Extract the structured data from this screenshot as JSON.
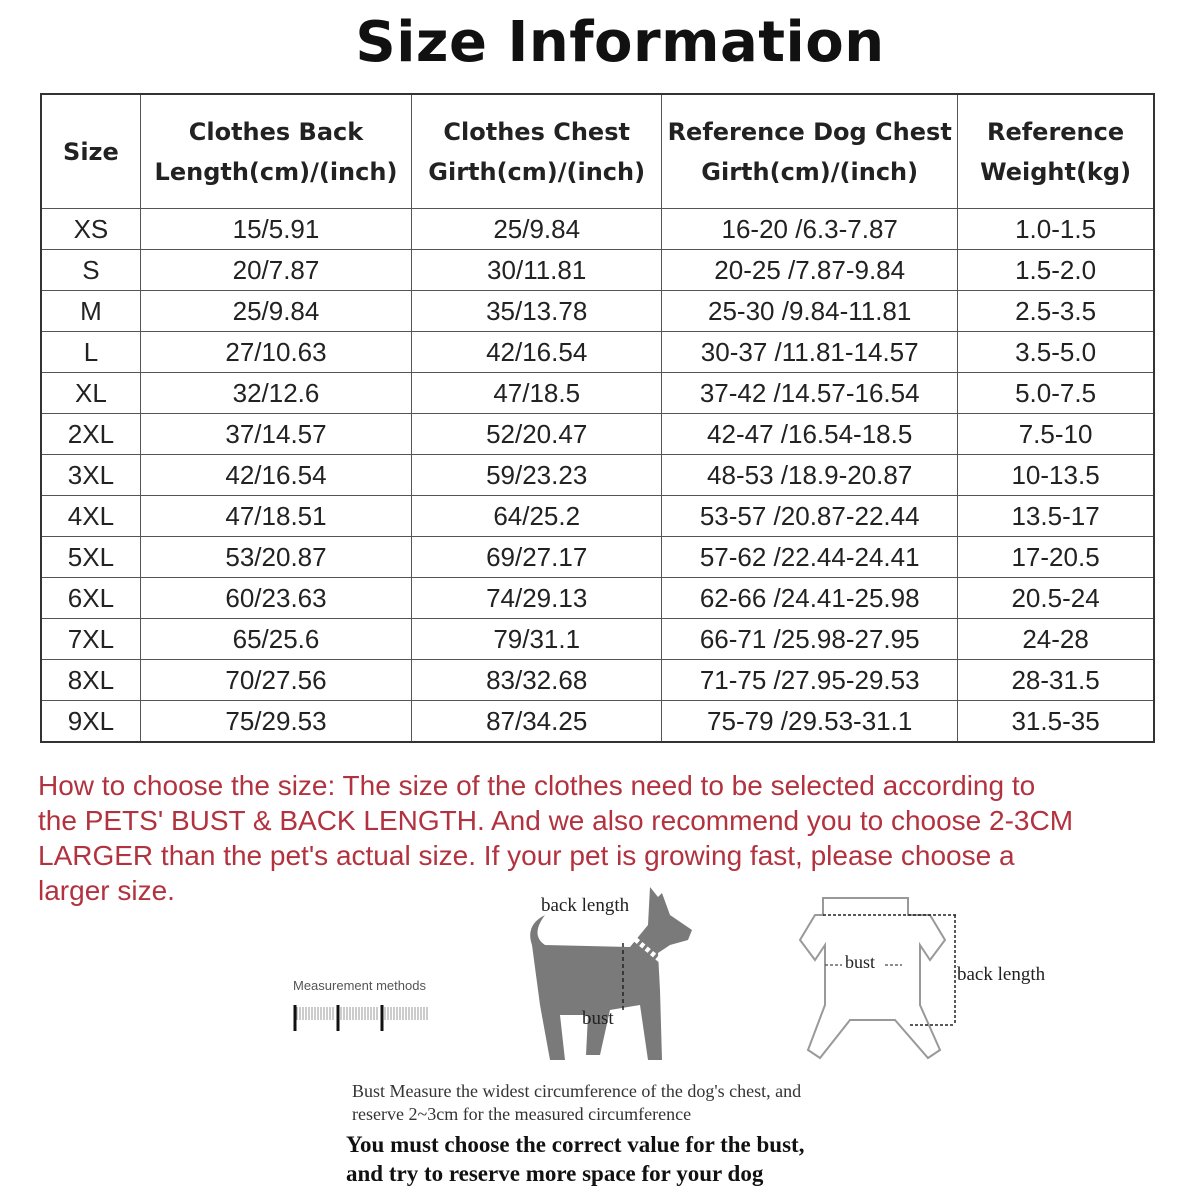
{
  "title": "Size Information",
  "table": {
    "headers": [
      [
        "Size"
      ],
      [
        "Clothes Back",
        "Length(cm)/(inch)"
      ],
      [
        "Clothes Chest",
        "Girth(cm)/(inch)"
      ],
      [
        "Reference Dog Chest",
        "Girth(cm)/(inch)"
      ],
      [
        "Reference",
        "Weight(kg)"
      ]
    ],
    "rows": [
      [
        "XS",
        "15/5.91",
        "25/9.84",
        "16-20 /6.3-7.87",
        "1.0-1.5"
      ],
      [
        "S",
        "20/7.87",
        "30/11.81",
        "20-25 /7.87-9.84",
        "1.5-2.0"
      ],
      [
        "M",
        "25/9.84",
        "35/13.78",
        "25-30 /9.84-11.81",
        "2.5-3.5"
      ],
      [
        "L",
        "27/10.63",
        "42/16.54",
        "30-37 /11.81-14.57",
        "3.5-5.0"
      ],
      [
        "XL",
        "32/12.6",
        "47/18.5",
        "37-42 /14.57-16.54",
        "5.0-7.5"
      ],
      [
        "2XL",
        "37/14.57",
        "52/20.47",
        "42-47 /16.54-18.5",
        "7.5-10"
      ],
      [
        "3XL",
        "42/16.54",
        "59/23.23",
        "48-53 /18.9-20.87",
        "10-13.5"
      ],
      [
        "4XL",
        "47/18.51",
        "64/25.2",
        "53-57 /20.87-22.44",
        "13.5-17"
      ],
      [
        "5XL",
        "53/20.87",
        "69/27.17",
        "57-62 /22.44-24.41",
        "17-20.5"
      ],
      [
        "6XL",
        "60/23.63",
        "74/29.13",
        "62-66 /24.41-25.98",
        "20.5-24"
      ],
      [
        "7XL",
        "65/25.6",
        "79/31.1",
        "66-71 /25.98-27.95",
        "24-28"
      ],
      [
        "8XL",
        "70/27.56",
        "83/32.68",
        "71-75 /27.95-29.53",
        "28-31.5"
      ],
      [
        "9XL",
        "75/29.53",
        "87/34.25",
        "75-79 /29.53-31.1",
        "31.5-35"
      ]
    ]
  },
  "howto": [
    "How to choose the size: The size of the clothes need to be selected according to",
    "the PETS' BUST & BACK LENGTH. And we also recommend you to choose 2-3CM",
    "LARGER than the pet's actual size. If your pet is growing fast, please choose a",
    "larger size."
  ],
  "diagram": {
    "measurement_methods": "Measurement methods",
    "dog_back_length": "back length",
    "dog_bust": "bust",
    "clothes_bust": "bust",
    "clothes_back_length": "back length"
  },
  "notes": {
    "bust_line1": "Bust Measure the widest circumference of the dog's chest, and",
    "bust_line2": "reserve 2~3cm for the measured circumference",
    "bold_line1": "You must choose the correct value for the bust,",
    "bold_line2": "and try to reserve more space for your dog"
  },
  "colors": {
    "howto_text": "#b2333f",
    "dog_silhouette": "#7a7a7a"
  }
}
